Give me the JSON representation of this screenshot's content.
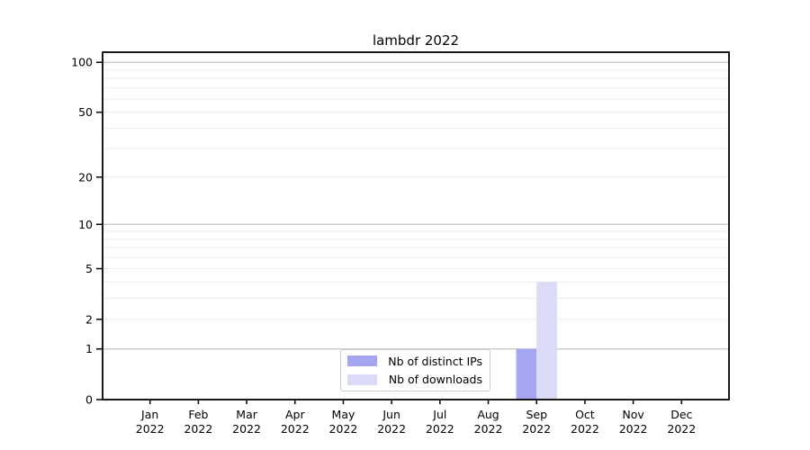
{
  "chart_data": {
    "type": "bar",
    "title": "lambdr 2022",
    "categories": [
      "Jan",
      "Feb",
      "Mar",
      "Apr",
      "May",
      "Jun",
      "Jul",
      "Aug",
      "Sep",
      "Oct",
      "Nov",
      "Dec"
    ],
    "category_sublabel": "2022",
    "series": [
      {
        "name": "Nb of distinct IPs",
        "color": "#a5a5f2",
        "values": [
          0,
          0,
          0,
          0,
          0,
          0,
          0,
          0,
          1,
          0,
          0,
          0
        ]
      },
      {
        "name": "Nb of downloads",
        "color": "#dbdbf8",
        "values": [
          0,
          0,
          0,
          0,
          0,
          0,
          0,
          0,
          4,
          0,
          0,
          0
        ]
      }
    ],
    "yscale": "log1p",
    "yticks": [
      0,
      1,
      2,
      5,
      10,
      20,
      50,
      100
    ],
    "major_gridlines": [
      1,
      10,
      100
    ],
    "minor_gridlines": [
      2,
      3,
      4,
      5,
      6,
      7,
      8,
      9,
      20,
      30,
      40,
      50,
      60,
      70,
      80,
      90
    ],
    "ylim": [
      0,
      115
    ],
    "legend_position": "bottom-center",
    "colors": {
      "axis": "#000000",
      "text": "#000000",
      "gridline_major": "#c3c3c3",
      "gridline_minor": "#ececec",
      "legend_border": "#cccccc",
      "background": "#ffffff"
    }
  }
}
